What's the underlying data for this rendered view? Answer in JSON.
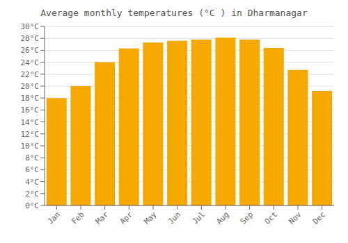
{
  "chart_data": {
    "type": "bar",
    "title": "Average monthly temperatures (°C ) in Dharmanagar",
    "categories": [
      "Jan",
      "Feb",
      "Mar",
      "Apr",
      "May",
      "Jun",
      "Jul",
      "Aug",
      "Sep",
      "Oct",
      "Nov",
      "Dec"
    ],
    "values": [
      18.0,
      20.0,
      24.0,
      26.3,
      27.3,
      27.6,
      27.8,
      28.1,
      27.8,
      26.4,
      22.7,
      19.2
    ],
    "color": "#F5A800",
    "ylim": [
      0,
      30
    ],
    "yticks": [
      {
        "value": 0,
        "label": "0°C"
      },
      {
        "value": 2,
        "label": "2°C"
      },
      {
        "value": 4,
        "label": "4°C"
      },
      {
        "value": 6,
        "label": "6°C"
      },
      {
        "value": 8,
        "label": "8°C"
      },
      {
        "value": 10,
        "label": "10°C"
      },
      {
        "value": 12,
        "label": "12°C"
      },
      {
        "value": 14,
        "label": "14°C"
      },
      {
        "value": 16,
        "label": "16°C"
      },
      {
        "value": 18,
        "label": "18°C"
      },
      {
        "value": 20,
        "label": "20°C"
      },
      {
        "value": 22,
        "label": "22°C"
      },
      {
        "value": 24,
        "label": "24°C"
      },
      {
        "value": 26,
        "label": "26°C"
      },
      {
        "value": 28,
        "label": "28°C"
      },
      {
        "value": 30,
        "label": "30°C"
      }
    ],
    "grid": true
  }
}
